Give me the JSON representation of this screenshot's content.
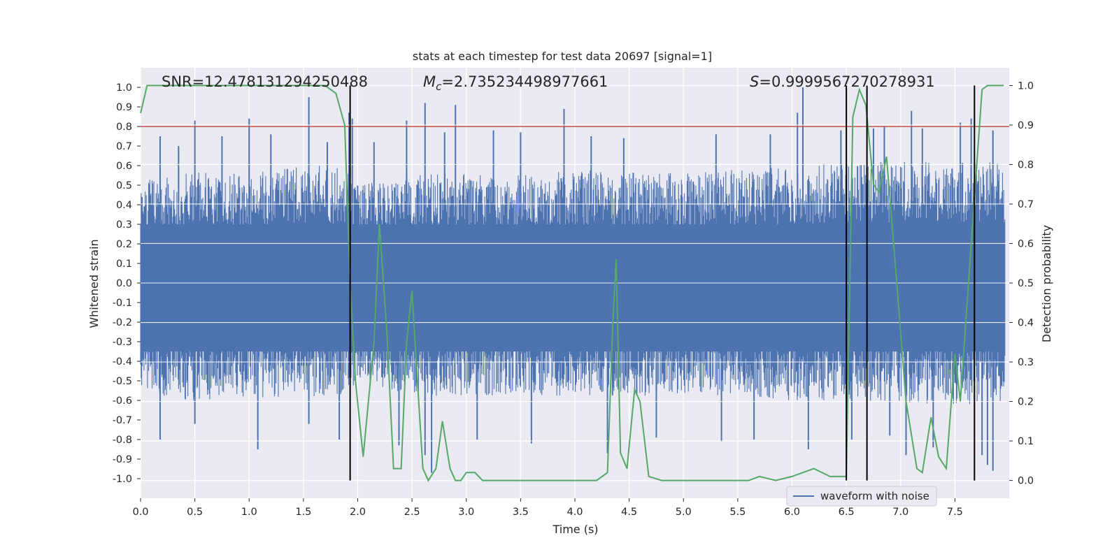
{
  "chart_data": {
    "type": "line",
    "title": "stats at each timestep for test data 20697 [signal=1]",
    "xlabel": "Time (s)",
    "ylabel_left": "Whitened strain",
    "ylabel_right": "Detection probability",
    "xlim": [
      0.0,
      8.0
    ],
    "ylim_left": [
      -1.1,
      1.1
    ],
    "ylim_right": [
      -0.045,
      1.045
    ],
    "x_ticks": [
      "0.0",
      "0.5",
      "1.0",
      "1.5",
      "2.0",
      "2.5",
      "3.0",
      "3.5",
      "4.0",
      "4.5",
      "5.0",
      "5.5",
      "6.0",
      "6.5",
      "7.0",
      "7.5"
    ],
    "y_ticks_left": [
      "1.0",
      "0.9",
      "0.8",
      "0.7",
      "0.6",
      "0.5",
      "0.4",
      "0.3",
      "0.2",
      "0.1",
      "0.0",
      "-0.1",
      "-0.2",
      "-0.3",
      "-0.4",
      "-0.5",
      "-0.6",
      "-0.7",
      "-0.8",
      "-0.9",
      "-1.0"
    ],
    "y_ticks_right": [
      "1.0",
      "0.9",
      "0.8",
      "0.7",
      "0.6",
      "0.5",
      "0.4",
      "0.3",
      "0.2",
      "0.1",
      "0.0"
    ],
    "annotations": {
      "snr": "SNR=12.478131294250488",
      "mc_symbol": "M",
      "mc_sub": "c",
      "mc_value": "=2.735234498977661",
      "s_symbol": "S",
      "s_value": "=0.9999567270278931"
    },
    "threshold": {
      "value": 0.8,
      "axis": "left",
      "color": "#c44e52"
    },
    "vertical_lines": [
      1.93,
      6.5,
      6.69,
      7.68
    ],
    "legend": {
      "label": "waveform with noise",
      "position": "lower-right"
    },
    "grid": true,
    "colors": {
      "waveform": "#4c72b0",
      "probability": "#55a868",
      "background": "#eaeaf2",
      "vlines": "#000000"
    },
    "series": [
      {
        "name": "waveform with noise",
        "axis": "left",
        "style": "noise-band",
        "envelope_upper": [
          [
            0.0,
            0.52
          ],
          [
            0.5,
            0.58
          ],
          [
            1.0,
            0.56
          ],
          [
            1.5,
            0.6
          ],
          [
            1.9,
            0.6
          ],
          [
            2.0,
            0.5
          ],
          [
            2.5,
            0.56
          ],
          [
            3.0,
            0.56
          ],
          [
            3.5,
            0.55
          ],
          [
            4.0,
            0.58
          ],
          [
            4.5,
            0.57
          ],
          [
            5.0,
            0.56
          ],
          [
            5.5,
            0.58
          ],
          [
            6.0,
            0.6
          ],
          [
            6.5,
            0.62
          ],
          [
            7.0,
            0.62
          ],
          [
            7.5,
            0.62
          ],
          [
            8.0,
            0.62
          ]
        ],
        "envelope_lower": [
          [
            0.0,
            -0.58
          ],
          [
            0.5,
            -0.6
          ],
          [
            1.0,
            -0.58
          ],
          [
            1.5,
            -0.6
          ],
          [
            1.9,
            -0.58
          ],
          [
            2.0,
            -0.5
          ],
          [
            2.5,
            -0.58
          ],
          [
            3.0,
            -0.58
          ],
          [
            3.5,
            -0.57
          ],
          [
            4.0,
            -0.58
          ],
          [
            4.5,
            -0.58
          ],
          [
            5.0,
            -0.57
          ],
          [
            5.5,
            -0.58
          ],
          [
            6.0,
            -0.6
          ],
          [
            6.5,
            -0.6
          ],
          [
            7.0,
            -0.62
          ],
          [
            7.5,
            -0.62
          ],
          [
            8.0,
            -0.62
          ]
        ],
        "peaks_up": [
          [
            0.18,
            0.75
          ],
          [
            0.35,
            0.7
          ],
          [
            0.5,
            0.83
          ],
          [
            0.75,
            0.75
          ],
          [
            1.0,
            0.84
          ],
          [
            1.2,
            0.76
          ],
          [
            1.55,
            0.95
          ],
          [
            1.72,
            0.72
          ],
          [
            1.92,
            0.87
          ],
          [
            1.95,
            0.84
          ],
          [
            2.15,
            0.72
          ],
          [
            2.45,
            0.83
          ],
          [
            2.62,
            0.92
          ],
          [
            2.8,
            0.77
          ],
          [
            2.9,
            0.91
          ],
          [
            3.25,
            0.78
          ],
          [
            3.5,
            0.77
          ],
          [
            3.9,
            0.89
          ],
          [
            4.15,
            0.75
          ],
          [
            4.45,
            0.74
          ],
          [
            5.3,
            0.76
          ],
          [
            5.8,
            0.76
          ],
          [
            6.05,
            0.87
          ],
          [
            6.1,
            1.0
          ],
          [
            6.45,
            0.78
          ],
          [
            6.75,
            0.79
          ],
          [
            6.85,
            0.8
          ],
          [
            7.1,
            0.88
          ],
          [
            7.2,
            0.79
          ],
          [
            7.55,
            0.82
          ],
          [
            7.65,
            0.84
          ],
          [
            7.85,
            0.78
          ]
        ],
        "peaks_down": [
          [
            0.18,
            -0.8
          ],
          [
            0.5,
            -0.72
          ],
          [
            1.08,
            -0.85
          ],
          [
            1.55,
            -0.72
          ],
          [
            1.83,
            -0.8
          ],
          [
            2.38,
            -0.83
          ],
          [
            2.62,
            -0.88
          ],
          [
            2.68,
            -0.97
          ],
          [
            3.1,
            -0.8
          ],
          [
            3.6,
            -0.82
          ],
          [
            4.3,
            -0.87
          ],
          [
            4.75,
            -0.79
          ],
          [
            5.35,
            -0.81
          ],
          [
            5.65,
            -0.8
          ],
          [
            6.15,
            -0.85
          ],
          [
            6.55,
            -0.8
          ],
          [
            6.9,
            -0.78
          ],
          [
            7.05,
            -0.88
          ],
          [
            7.3,
            -0.84
          ],
          [
            7.75,
            -0.88
          ],
          [
            7.8,
            -0.93
          ],
          [
            7.85,
            -0.96
          ]
        ]
      },
      {
        "name": "",
        "axis": "right",
        "style": "line",
        "points": [
          [
            0.0,
            0.93
          ],
          [
            0.06,
            1.0
          ],
          [
            0.4,
            1.0
          ],
          [
            1.0,
            1.0
          ],
          [
            1.7,
            1.0
          ],
          [
            1.8,
            0.98
          ],
          [
            1.88,
            0.9
          ],
          [
            1.93,
            0.5
          ],
          [
            1.98,
            0.25
          ],
          [
            2.05,
            0.06
          ],
          [
            2.15,
            0.35
          ],
          [
            2.2,
            0.65
          ],
          [
            2.27,
            0.37
          ],
          [
            2.33,
            0.03
          ],
          [
            2.4,
            0.03
          ],
          [
            2.45,
            0.35
          ],
          [
            2.5,
            0.48
          ],
          [
            2.55,
            0.25
          ],
          [
            2.6,
            0.03
          ],
          [
            2.65,
            0.0
          ],
          [
            2.72,
            0.03
          ],
          [
            2.78,
            0.15
          ],
          [
            2.85,
            0.03
          ],
          [
            2.9,
            0.0
          ],
          [
            2.95,
            0.0
          ],
          [
            3.0,
            0.02
          ],
          [
            3.08,
            0.02
          ],
          [
            3.15,
            0.0
          ],
          [
            3.3,
            0.0
          ],
          [
            3.5,
            0.0
          ],
          [
            3.7,
            0.0
          ],
          [
            3.9,
            0.0
          ],
          [
            4.1,
            0.0
          ],
          [
            4.2,
            0.0
          ],
          [
            4.3,
            0.02
          ],
          [
            4.35,
            0.4
          ],
          [
            4.38,
            0.56
          ],
          [
            4.42,
            0.07
          ],
          [
            4.48,
            0.03
          ],
          [
            4.55,
            0.23
          ],
          [
            4.6,
            0.2
          ],
          [
            4.68,
            0.01
          ],
          [
            4.8,
            0.0
          ],
          [
            5.0,
            0.0
          ],
          [
            5.2,
            0.0
          ],
          [
            5.4,
            0.0
          ],
          [
            5.6,
            0.0
          ],
          [
            5.7,
            0.01
          ],
          [
            5.85,
            0.0
          ],
          [
            6.0,
            0.01
          ],
          [
            6.1,
            0.02
          ],
          [
            6.2,
            0.03
          ],
          [
            6.35,
            0.01
          ],
          [
            6.5,
            0.01
          ],
          [
            6.56,
            0.92
          ],
          [
            6.62,
            0.99
          ],
          [
            6.68,
            0.95
          ],
          [
            6.75,
            0.75
          ],
          [
            6.8,
            0.73
          ],
          [
            6.87,
            0.82
          ],
          [
            6.95,
            0.55
          ],
          [
            7.05,
            0.2
          ],
          [
            7.15,
            0.03
          ],
          [
            7.2,
            0.02
          ],
          [
            7.28,
            0.16
          ],
          [
            7.35,
            0.06
          ],
          [
            7.42,
            0.03
          ],
          [
            7.5,
            0.32
          ],
          [
            7.55,
            0.2
          ],
          [
            7.65,
            0.6
          ],
          [
            7.75,
            0.99
          ],
          [
            7.8,
            1.0
          ],
          [
            7.95,
            1.0
          ]
        ]
      }
    ]
  }
}
